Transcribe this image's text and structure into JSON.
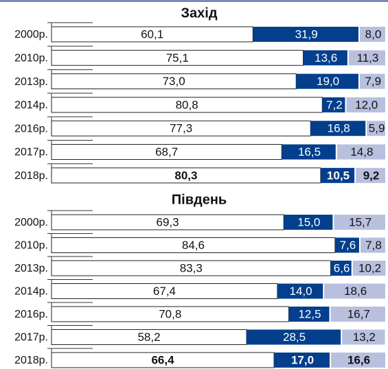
{
  "chart_data": [
    {
      "type": "stacked_barh",
      "title": "Захід",
      "categories": [
        "2000р.",
        "2010р.",
        "2013р.",
        "2014р.",
        "2016р.",
        "2017р.",
        "2018р."
      ],
      "xlim": [
        0,
        100
      ],
      "series": [
        {
          "color": "#ffffff",
          "values": [
            60.1,
            75.1,
            73.0,
            80.8,
            77.3,
            68.7,
            80.3
          ],
          "value_labels": [
            "60,1",
            "75,1",
            "73,0",
            "80,8",
            "77,3",
            "68,7",
            "80,3"
          ]
        },
        {
          "color": "#033f8c",
          "values": [
            31.9,
            13.6,
            19.0,
            7.2,
            16.8,
            16.5,
            10.5
          ],
          "value_labels": [
            "31,9",
            "13,6",
            "19,0",
            "7,2",
            "16,8",
            "16,5",
            "10,5"
          ]
        },
        {
          "color": "#b9c0de",
          "values": [
            8.0,
            11.3,
            7.9,
            12.0,
            5.9,
            14.8,
            9.2
          ],
          "value_labels": [
            "8,0",
            "11,3",
            "7,9",
            "12,0",
            "5,9",
            "14,8",
            "9,2"
          ]
        }
      ]
    },
    {
      "type": "stacked_barh",
      "title": "Південь",
      "categories": [
        "2000р.",
        "2010р.",
        "2013р.",
        "2014р.",
        "2016р.",
        "2017р.",
        "2018р."
      ],
      "xlim": [
        0,
        100
      ],
      "series": [
        {
          "color": "#ffffff",
          "values": [
            69.3,
            84.6,
            83.3,
            67.4,
            70.8,
            58.2,
            66.4
          ],
          "value_labels": [
            "69,3",
            "84,6",
            "83,3",
            "67,4",
            "70,8",
            "58,2",
            "66,4"
          ]
        },
        {
          "color": "#033f8c",
          "values": [
            15.0,
            7.6,
            6.6,
            14.0,
            12.5,
            28.5,
            17.0
          ],
          "value_labels": [
            "15,0",
            "7,6",
            "6,6",
            "14,0",
            "12,5",
            "28,5",
            "17,0"
          ]
        },
        {
          "color": "#b9c0de",
          "values": [
            15.7,
            7.8,
            10.2,
            18.6,
            16.7,
            13.2,
            16.6
          ],
          "value_labels": [
            "15,7",
            "7,8",
            "10,2",
            "18,6",
            "16,7",
            "13,2",
            "16,6"
          ]
        }
      ]
    }
  ]
}
